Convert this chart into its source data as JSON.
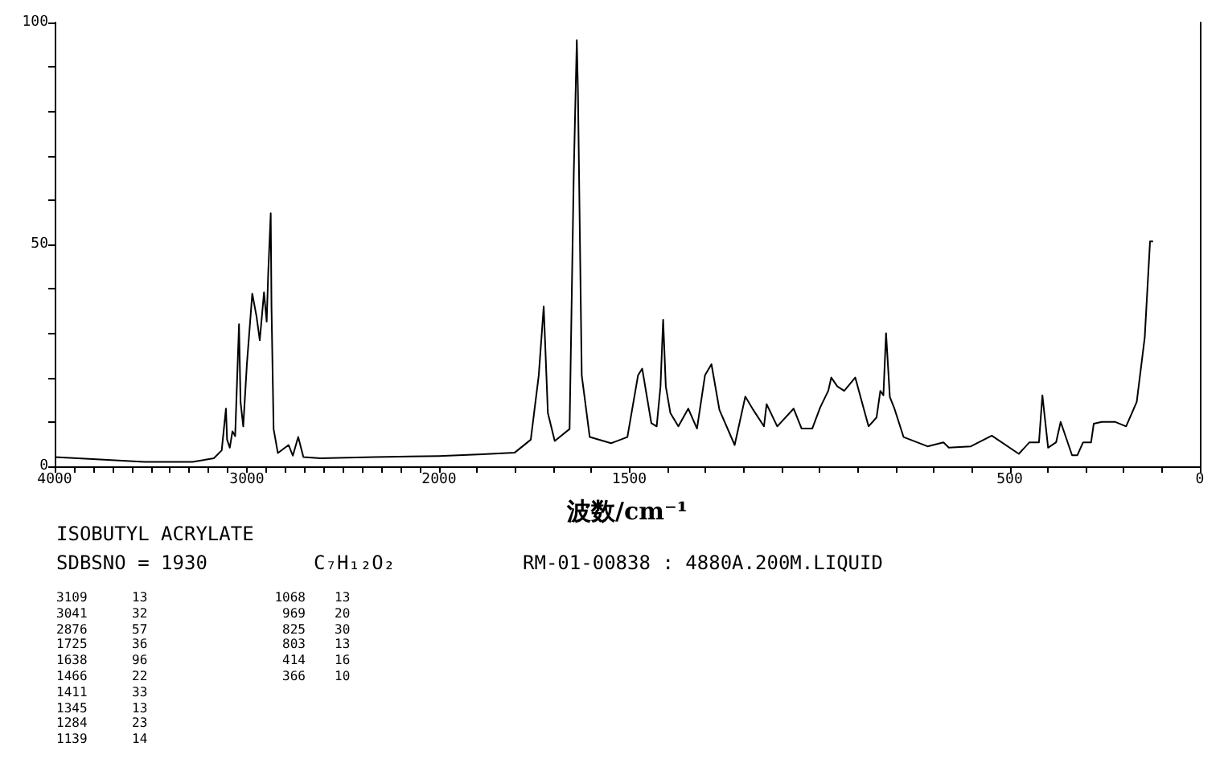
{
  "chart_data": [
    {
      "type": "line",
      "xlim": [
        4000,
        2000
      ],
      "ylim": [
        0,
        100
      ],
      "xticks": [
        4000,
        {
          "value": 3900,
          "label": null
        },
        {
          "value": 3800,
          "label": null
        },
        {
          "value": 3700,
          "label": null
        },
        {
          "value": 3600,
          "label": null
        },
        {
          "value": 3500,
          "label": null
        },
        {
          "value": 3400,
          "label": null
        },
        {
          "value": 3300,
          "label": null
        },
        {
          "value": 3200,
          "label": null
        },
        {
          "value": 3100,
          "label": null
        },
        3000,
        {
          "value": 2900,
          "label": null
        },
        {
          "value": 2800,
          "label": null
        },
        {
          "value": 2700,
          "label": null
        },
        {
          "value": 2600,
          "label": null
        },
        {
          "value": 2500,
          "label": null
        },
        {
          "value": 2400,
          "label": null
        },
        {
          "value": 2300,
          "label": null
        },
        {
          "value": 2200,
          "label": null
        },
        {
          "value": 2100,
          "label": null
        },
        2000
      ],
      "yticks": [
        0,
        {
          "value": 10,
          "label": null
        },
        {
          "value": 20,
          "label": null
        },
        {
          "value": 30,
          "label": null
        },
        {
          "value": 40,
          "label": null
        },
        50,
        {
          "value": 60,
          "label": null
        },
        {
          "value": 70,
          "label": null
        },
        {
          "value": 80,
          "label": null
        },
        {
          "value": 90,
          "label": null
        },
        100
      ],
      "grid": false,
      "marker": "none",
      "line_style": "solid",
      "series": [
        {
          "color": "#000000",
          "x": [
            4000,
            3783,
            3533,
            3283,
            3172,
            3131,
            3109,
            3103,
            3089,
            3075,
            3061,
            3041,
            3033,
            3019,
            3000,
            2972,
            2950,
            2933,
            2911,
            2897,
            2889,
            2876,
            2872,
            2861,
            2839,
            2783,
            2761,
            2733,
            2706,
            2617,
            2339,
            2000
          ],
          "values": [
            2.1,
            1.6,
            1.0,
            1.0,
            1.8,
            3.6,
            13,
            6,
            4.2,
            7.9,
            6.8,
            32,
            14.5,
            9,
            23,
            38.9,
            33.8,
            28.4,
            39.2,
            32.6,
            43.5,
            57,
            36,
            8.4,
            3,
            4.8,
            2.4,
            6.6,
            2.1,
            1.8,
            2.1,
            2.3
          ]
        }
      ],
      "annotations": [
        "ISOBUTYL ACRYLATE",
        "SDBSNO = 1930",
        "C₇H₁₂O₂",
        "RM-01-00838 : 4880A.200M.LIQUID",
        "3109 13",
        "3041 32",
        "2876 57",
        "1725 36",
        "1638 96",
        "1466 22",
        "1411 33",
        "1345 13",
        "1284 23",
        "1139 14",
        "1068 13",
        "969 20",
        "825 30",
        "803 13",
        "414 16",
        "366 10"
      ]
    },
    {
      "type": "line",
      "xlim": [
        2000,
        0
      ],
      "ylim": [
        0,
        100
      ],
      "tick_labels": "x",
      "xlabel": "波数/cm⁻¹",
      "xticks": [
        {
          "value": 1900,
          "label": null
        },
        {
          "value": 1800,
          "label": null
        },
        {
          "value": 1700,
          "label": null
        },
        {
          "value": 1600,
          "label": null
        },
        1500,
        {
          "value": 1400,
          "label": null
        },
        {
          "value": 1300,
          "label": null
        },
        {
          "value": 1200,
          "label": null
        },
        {
          "value": 1100,
          "label": null
        },
        {
          "value": 1000,
          "label": null
        },
        {
          "value": 900,
          "label": null
        },
        {
          "value": 800,
          "label": null
        },
        {
          "value": 700,
          "label": null
        },
        {
          "value": 600,
          "label": null
        },
        500,
        {
          "value": 400,
          "label": null
        },
        {
          "value": 300,
          "label": null
        },
        {
          "value": 200,
          "label": null
        },
        {
          "value": 100,
          "label": null
        },
        0
      ],
      "grid": false,
      "marker": "none",
      "line_style": "solid",
      "series": [
        {
          "color": "#000000",
          "x": [
            2000,
            1886,
            1801,
            1759,
            1738,
            1725,
            1714,
            1696,
            1657,
            1646,
            1638,
            1635,
            1625,
            1604,
            1548,
            1505,
            1477,
            1466,
            1442,
            1428,
            1418,
            1411,
            1404,
            1392,
            1371,
            1345,
            1322,
            1301,
            1284,
            1263,
            1223,
            1195,
            1174,
            1146,
            1139,
            1111,
            1068,
            1047,
            1019,
            998,
            977,
            969,
            953,
            935,
            906,
            871,
            850,
            840,
            832,
            825,
            815,
            803,
            779,
            716,
            674,
            660,
            602,
            547,
            476,
            448,
            423,
            414,
            399,
            378,
            366,
            336,
            322,
            307,
            286,
            279,
            258,
            222,
            194,
            166,
            145,
            131,
            123
          ],
          "values": [
            2.3,
            2.7,
            3.1,
            6,
            20.5,
            36,
            12,
            5.7,
            8.4,
            66,
            96,
            84.5,
            20.5,
            6.6,
            5.2,
            6.6,
            20.5,
            22,
            9.7,
            9,
            18,
            33,
            18,
            12,
            9,
            13,
            8.5,
            20.5,
            23,
            12.7,
            4.8,
            15.7,
            12.7,
            9,
            14,
            9,
            13,
            8.5,
            8.5,
            13.3,
            17,
            20,
            18,
            17,
            20,
            9,
            11,
            17,
            16,
            30,
            15.6,
            13,
            6.6,
            4.5,
            5.4,
            4.2,
            4.5,
            6.9,
            2.8,
            5.4,
            5.4,
            16,
            4.2,
            5.4,
            10,
            2.5,
            2.5,
            5.4,
            5.4,
            9.6,
            10,
            10,
            9,
            14.5,
            29,
            50.7,
            50.7
          ]
        }
      ]
    }
  ]
}
